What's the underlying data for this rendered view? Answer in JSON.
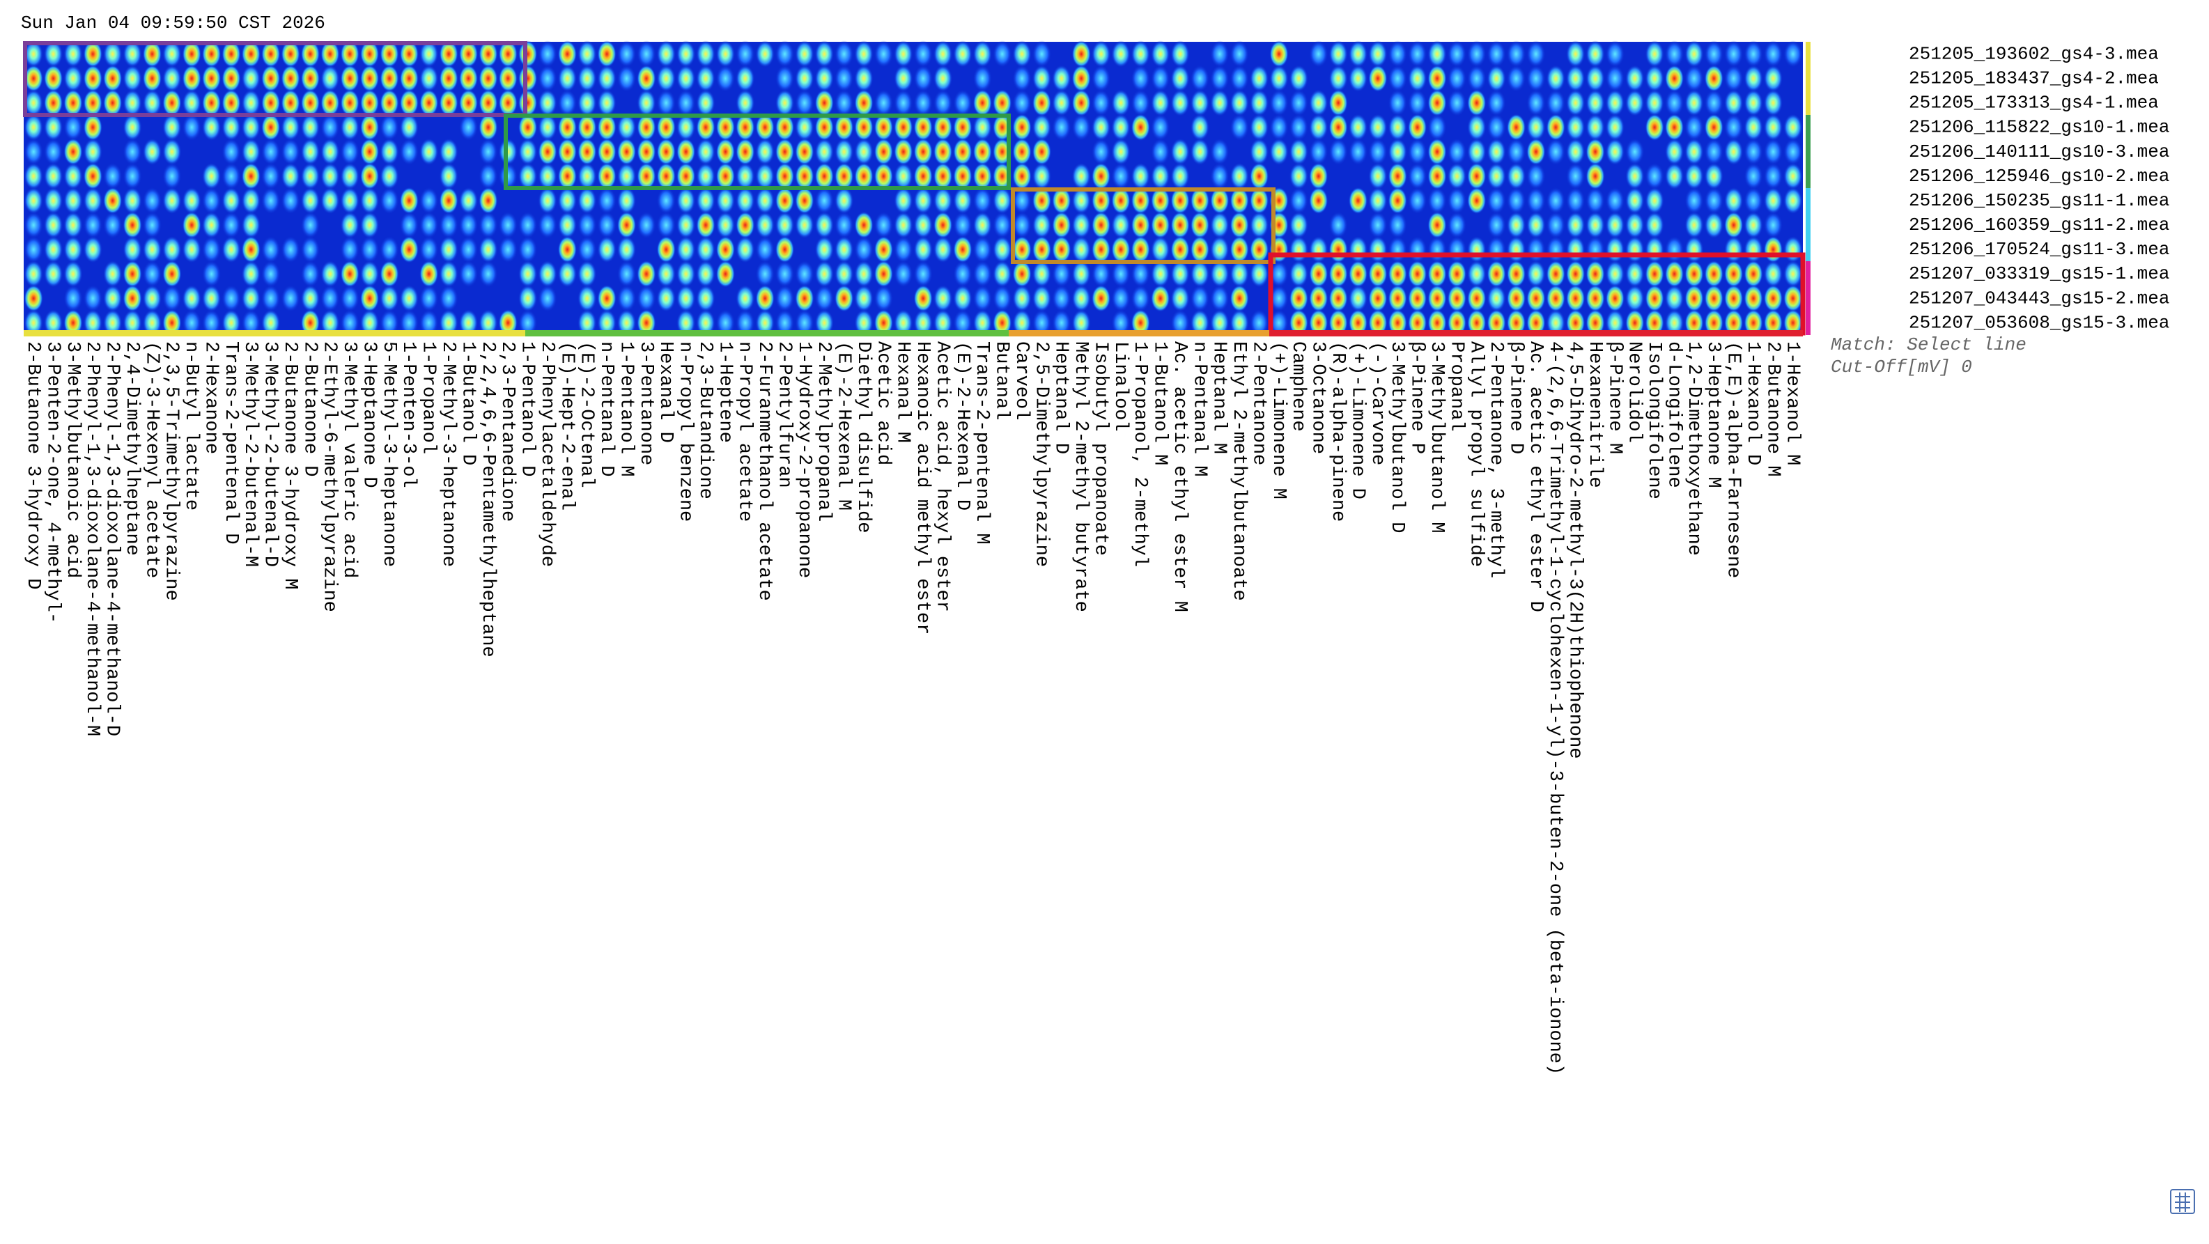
{
  "timestamp": "Sun Jan 04 09:59:50 CST 2026",
  "samples": [
    "251205_193602_gs4-3.mea",
    "251205_183437_gs4-2.mea",
    "251205_173313_gs4-1.mea",
    "251206_115822_gs10-1.mea",
    "251206_140111_gs10-3.mea",
    "251206_125946_gs10-2.mea",
    "251206_150235_gs11-1.mea",
    "251206_160359_gs11-2.mea",
    "251206_170524_gs11-3.mea",
    "251207_033319_gs15-1.mea",
    "251207_043443_gs15-2.mea",
    "251207_053608_gs15-3.mea"
  ],
  "compounds": [
    "2-Butanone 3-hydroxy D",
    "3-Penten-2-one, 4-methyl-",
    "3-Methylbutanoic acid",
    "2-Phenyl-1,3-dioxolane-4-methanol-M",
    "2-Phenyl-1,3-dioxolane-4-methanol-D",
    "2,4-Dimethylheptane",
    "(Z)-3-Hexenyl acetate",
    "2,3,5-Trimethylpyrazine",
    "n-Butyl lactate",
    "2-Hexanone",
    "Trans-2-pentenal D",
    "3-Methyl-2-butenal-M",
    "3-Methyl-2-butenal-D",
    "2-Butanone 3-hydroxy M",
    "2-Butanone D",
    "2-Ethyl-6-methylpyrazine",
    "3-Methyl valeric acid",
    "3-Heptanone D",
    "5-Methyl-3-heptanone",
    "1-Penten-3-ol",
    "1-Propanol",
    "2-Methyl-3-heptanone",
    "1-Butanol D",
    "2,2,4,6,6-Pentamethylheptane",
    "2,3-Pentanedione",
    "1-Pentanol D",
    "2-Phenylacetaldehyde",
    "(E)-Hept-2-enal",
    "(E)-2-Octenal",
    "n-Pentanal D",
    "1-Pentanol M",
    "3-Pentanone",
    "Hexanal D",
    "n-Propyl benzene",
    "2,3-Butandione",
    "1-Heptene",
    "n-Propyl acetate",
    "2-Furanmethanol acetate",
    "2-Pentylfuran",
    "1-Hydroxy-2-propanone",
    "2-Methylpropanal",
    "(E)-2-Hexenal M",
    "Diethyl disulfide",
    "Acetic acid",
    "Hexanal M",
    "Hexanoic acid methyl ester",
    "Acetic acid, hexyl ester",
    "(E)-2-Hexenal D",
    "Trans-2-pentenal M",
    "Butanal",
    "Carveol",
    "2,5-Dimethylpyrazine",
    "Heptanal D",
    "Methyl 2-methyl butyrate",
    "Isobutyl propanoate",
    "Linalool",
    "1-Propanol, 2-methyl",
    "1-Butanol M",
    "Ac. acetic ethyl ester M",
    "n-Pentanal M",
    "Heptanal M",
    "Ethyl 2-methylbutanoate",
    "2-Pentanone",
    "(+)-Limonene M",
    "Camphene",
    "3-Octanone",
    "(R)-alpha-pinene",
    "(+)-Limonene D",
    "(-)-Carvone",
    "3-Methylbutanol D",
    "β-Pinene P",
    "3-Methylbutanol M",
    "Propanal",
    "Allyl propyl sulfide",
    "2-Pentanone, 3-methyl",
    "β-Pinene D",
    "Ac. acetic ethyl ester D",
    "4-(2,6,6-Trimethyl-1-cyclohexen-1-yl)-3-buten-2-one (beta-ionone)",
    "4,5-Dihydro-2-methyl-3(2H)thiophenone",
    "Hexanenitrile",
    "β-Pinene M",
    "Nerolidol",
    "Isolongifolene",
    "d-Longifolene",
    "1,2-Dimethoxyethane",
    "3-Heptanone M",
    "(E,E)-alpha-Farnesene",
    "1-Hexanol D",
    "2-Butanone M",
    "1-Hexanol M"
  ],
  "legend": {
    "match": "Match: Select line",
    "cutoff": "Cut-Off[mV] 0"
  }
}
